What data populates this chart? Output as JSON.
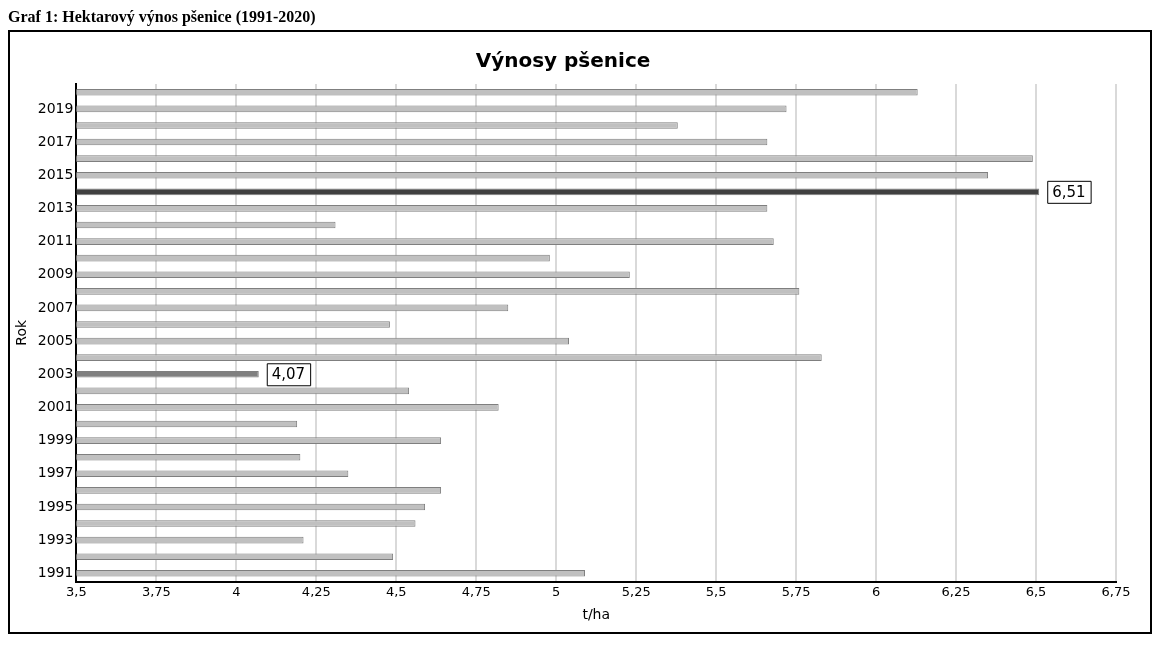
{
  "chart_data": {
    "type": "bar",
    "orientation": "horizontal",
    "title": "Výnosy pšenice",
    "xlabel": "t/ha",
    "ylabel": "Rok",
    "annotations": [
      "Graf 1: Hektarový výnos pšenice (1991-2020)"
    ],
    "categories": [
      null,
      "2019",
      null,
      "2017",
      null,
      "2015",
      null,
      "2013",
      null,
      "2011",
      null,
      "2009",
      null,
      "2007",
      null,
      "2005",
      null,
      "2003",
      null,
      "2001",
      null,
      "1999",
      null,
      "1997",
      null,
      "1995",
      null,
      "1993",
      null,
      "1991"
    ],
    "values": [
      6.13,
      5.72,
      5.38,
      5.66,
      6.49,
      6.35,
      6.51,
      5.66,
      4.31,
      5.68,
      4.98,
      5.23,
      5.76,
      4.85,
      4.48,
      5.04,
      5.83,
      4.07,
      4.54,
      4.82,
      4.19,
      4.64,
      4.2,
      4.35,
      4.64,
      4.59,
      4.56,
      4.21,
      4.49,
      5.09
    ],
    "colors": [
      "#c0c0c0",
      "#c0c0c0",
      "#c0c0c0",
      "#c0c0c0",
      "#c0c0c0",
      "#c0c0c0",
      "#404040",
      "#c0c0c0",
      "#c0c0c0",
      "#c0c0c0",
      "#c0c0c0",
      "#c0c0c0",
      "#c0c0c0",
      "#c0c0c0",
      "#c0c0c0",
      "#c0c0c0",
      "#c0c0c0",
      "#808080",
      "#c0c0c0",
      "#c0c0c0",
      "#c0c0c0",
      "#c0c0c0",
      "#c0c0c0",
      "#c0c0c0",
      "#c0c0c0",
      "#c0c0c0",
      "#c0c0c0",
      "#c0c0c0",
      "#c0c0c0",
      "#c0c0c0"
    ],
    "value_labels": [
      null,
      null,
      null,
      null,
      null,
      null,
      "6,51",
      null,
      null,
      null,
      null,
      null,
      null,
      null,
      null,
      null,
      null,
      "4,07",
      null,
      null,
      null,
      null,
      null,
      null,
      null,
      null,
      null,
      null,
      null,
      null
    ],
    "xlim": [
      3.5,
      6.75
    ],
    "xticks": [
      {
        "value": 3.5,
        "label": "3,5"
      },
      {
        "value": 3.75,
        "label": "3,75"
      },
      {
        "value": 4,
        "label": "4"
      },
      {
        "value": 4.25,
        "label": "4,25"
      },
      {
        "value": 4.5,
        "label": "4,5"
      },
      {
        "value": 4.75,
        "label": "4,75"
      },
      {
        "value": 5,
        "label": "5"
      },
      {
        "value": 5.25,
        "label": "5,25"
      },
      {
        "value": 5.5,
        "label": "5,5"
      },
      {
        "value": 5.75,
        "label": "5,75"
      },
      {
        "value": 6,
        "label": "6"
      },
      {
        "value": 6.25,
        "label": "6,25"
      },
      {
        "value": 6.5,
        "label": "6,5"
      },
      {
        "value": 6.75,
        "label": "6,75"
      }
    ],
    "grid": "x",
    "legend": false
  }
}
